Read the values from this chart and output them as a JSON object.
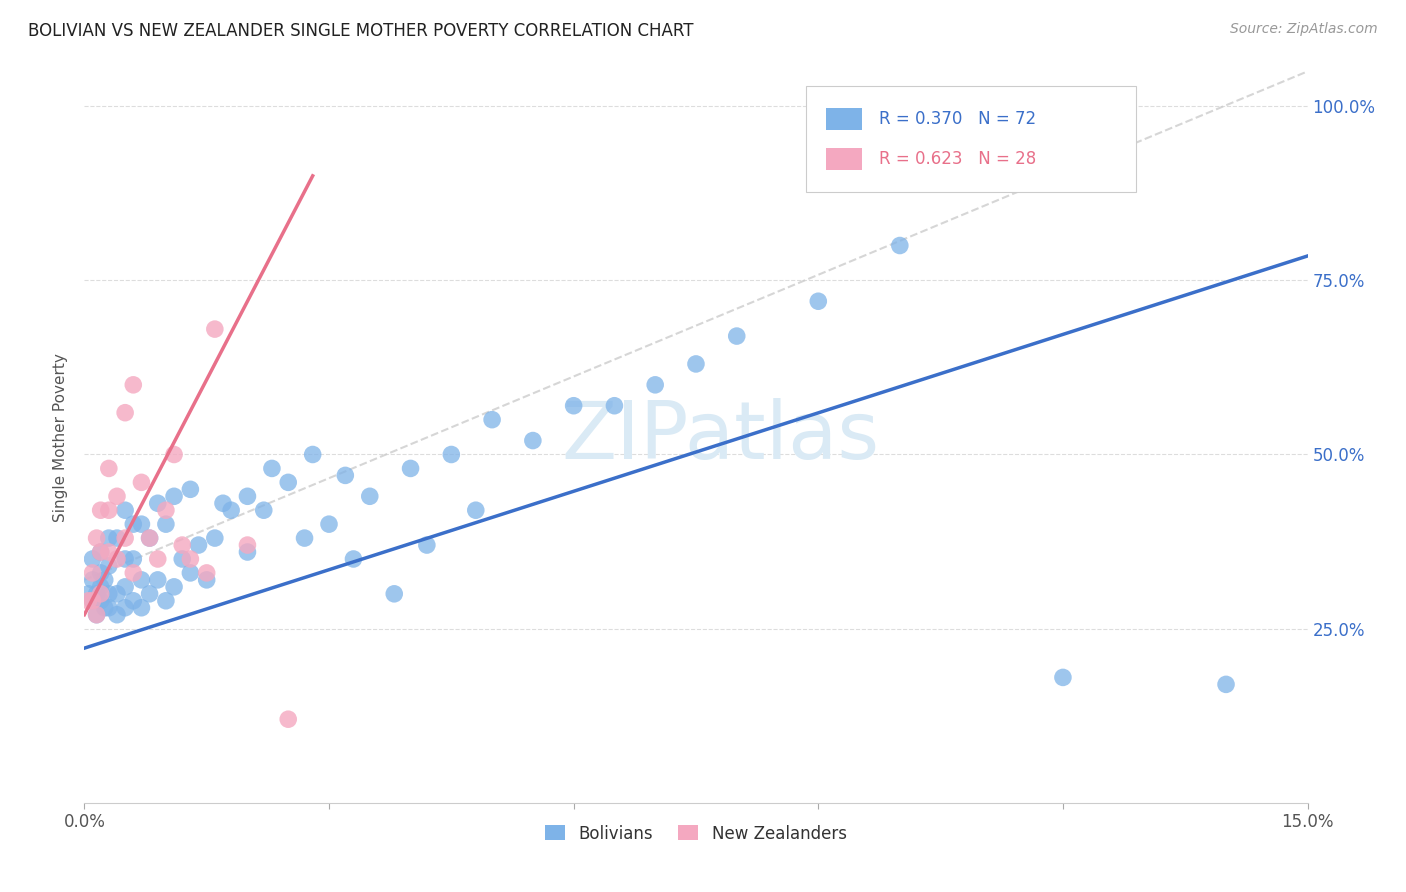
{
  "title": "BOLIVIAN VS NEW ZEALANDER SINGLE MOTHER POVERTY CORRELATION CHART",
  "source": "Source: ZipAtlas.com",
  "ylabel": "Single Mother Poverty",
  "yticks": [
    "25.0%",
    "50.0%",
    "75.0%",
    "100.0%"
  ],
  "ytick_vals": [
    0.25,
    0.5,
    0.75,
    1.0
  ],
  "x_min": 0.0,
  "x_max": 0.15,
  "y_min": 0.0,
  "y_max": 1.05,
  "blue_R": 0.37,
  "blue_N": 72,
  "pink_R": 0.623,
  "pink_N": 28,
  "blue_color": "#7EB3E8",
  "pink_color": "#F4A8C0",
  "blue_line_color": "#3B6FC9",
  "pink_line_color": "#E8708A",
  "grid_color": "#DDDDDD",
  "watermark_color": "#DAEAF5",
  "legend_label_blue": "Bolivians",
  "legend_label_pink": "New Zealanders",
  "blue_line_x0": 0.0,
  "blue_line_y0": 0.222,
  "blue_line_x1": 0.15,
  "blue_line_y1": 0.785,
  "pink_line_x0": 0.0,
  "pink_line_y0": 0.27,
  "pink_line_x1": 0.028,
  "pink_line_y1": 0.9,
  "dash_line_x0": 0.0,
  "dash_line_y0": 0.32,
  "dash_line_x1": 0.15,
  "dash_line_y1": 1.05,
  "blue_x": [
    0.0005,
    0.001,
    0.001,
    0.001,
    0.0015,
    0.0015,
    0.002,
    0.002,
    0.002,
    0.002,
    0.0025,
    0.0025,
    0.003,
    0.003,
    0.003,
    0.003,
    0.004,
    0.004,
    0.004,
    0.005,
    0.005,
    0.005,
    0.005,
    0.006,
    0.006,
    0.006,
    0.007,
    0.007,
    0.007,
    0.008,
    0.008,
    0.009,
    0.009,
    0.01,
    0.01,
    0.011,
    0.011,
    0.012,
    0.013,
    0.013,
    0.014,
    0.015,
    0.016,
    0.017,
    0.018,
    0.02,
    0.02,
    0.022,
    0.023,
    0.025,
    0.027,
    0.028,
    0.03,
    0.032,
    0.033,
    0.035,
    0.038,
    0.04,
    0.042,
    0.045,
    0.048,
    0.05,
    0.055,
    0.06,
    0.065,
    0.07,
    0.075,
    0.08,
    0.09,
    0.1,
    0.12,
    0.14
  ],
  "blue_y": [
    0.3,
    0.29,
    0.32,
    0.35,
    0.27,
    0.3,
    0.29,
    0.31,
    0.33,
    0.36,
    0.28,
    0.32,
    0.28,
    0.3,
    0.34,
    0.38,
    0.27,
    0.3,
    0.38,
    0.28,
    0.31,
    0.35,
    0.42,
    0.29,
    0.35,
    0.4,
    0.28,
    0.32,
    0.4,
    0.3,
    0.38,
    0.32,
    0.43,
    0.29,
    0.4,
    0.31,
    0.44,
    0.35,
    0.33,
    0.45,
    0.37,
    0.32,
    0.38,
    0.43,
    0.42,
    0.36,
    0.44,
    0.42,
    0.48,
    0.46,
    0.38,
    0.5,
    0.4,
    0.47,
    0.35,
    0.44,
    0.3,
    0.48,
    0.37,
    0.5,
    0.42,
    0.55,
    0.52,
    0.57,
    0.57,
    0.6,
    0.63,
    0.67,
    0.72,
    0.8,
    0.18,
    0.17
  ],
  "pink_x": [
    0.0005,
    0.001,
    0.001,
    0.0015,
    0.0015,
    0.002,
    0.002,
    0.002,
    0.003,
    0.003,
    0.003,
    0.004,
    0.004,
    0.005,
    0.005,
    0.006,
    0.006,
    0.007,
    0.008,
    0.009,
    0.01,
    0.011,
    0.012,
    0.013,
    0.015,
    0.016,
    0.02,
    0.025
  ],
  "pink_y": [
    0.29,
    0.29,
    0.33,
    0.27,
    0.38,
    0.3,
    0.36,
    0.42,
    0.36,
    0.42,
    0.48,
    0.35,
    0.44,
    0.38,
    0.56,
    0.33,
    0.6,
    0.46,
    0.38,
    0.35,
    0.42,
    0.5,
    0.37,
    0.35,
    0.33,
    0.68,
    0.37,
    0.12
  ]
}
